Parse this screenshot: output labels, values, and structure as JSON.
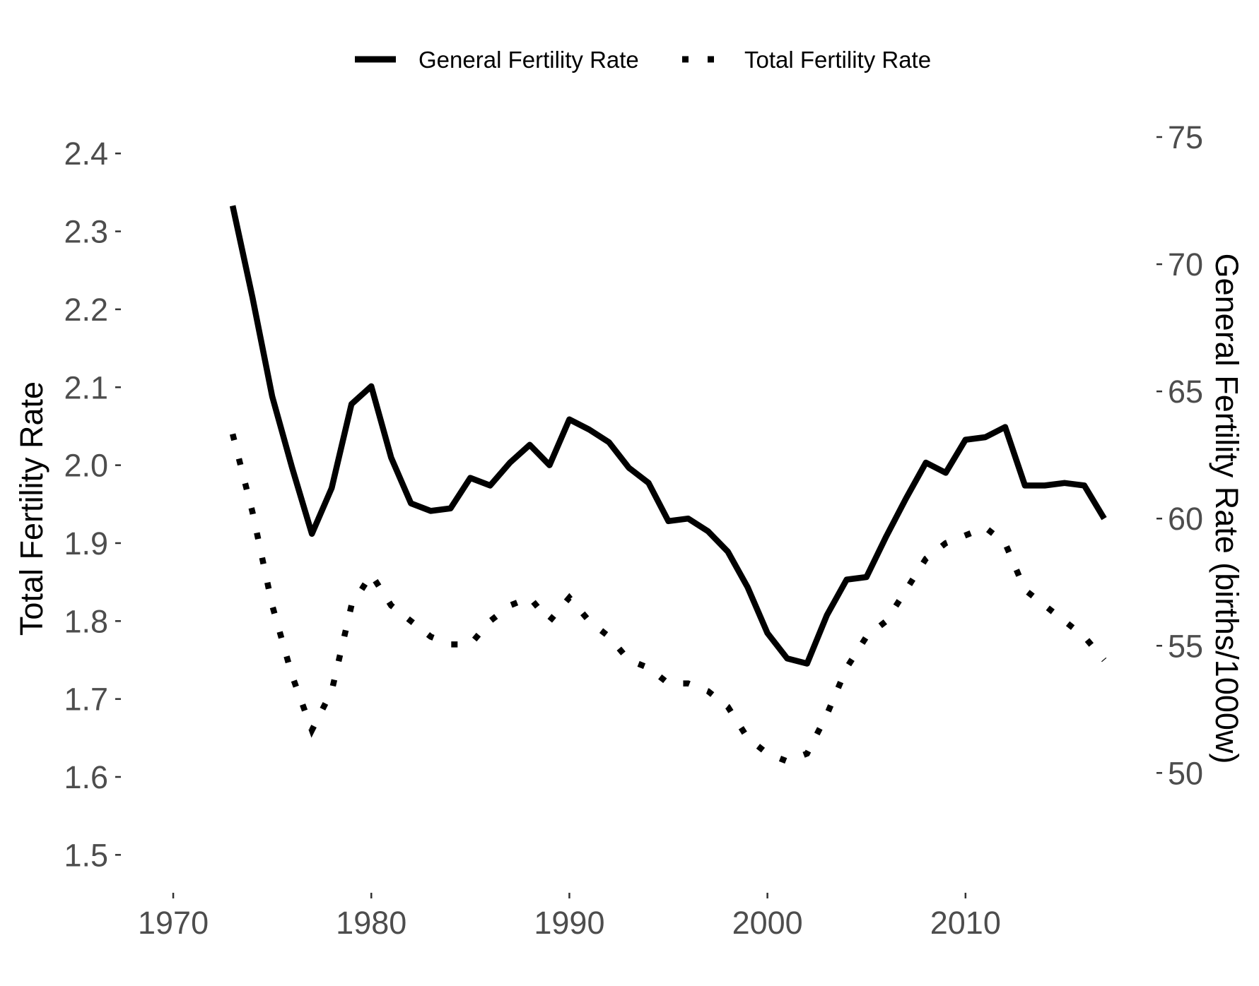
{
  "chart_data": {
    "type": "line",
    "legend": {
      "position": "top",
      "entries": [
        "General Fertility Rate",
        "Total Fertility Rate"
      ]
    },
    "x_ticks": [
      1970,
      1980,
      1990,
      2000,
      2010
    ],
    "x_range": [
      1967.5,
      2019.5
    ],
    "y_left": {
      "label": "Total Fertility Rate",
      "range": [
        1.455,
        2.47
      ],
      "ticks": [
        "1.5",
        "1.6",
        "1.7",
        "1.8",
        "1.9",
        "2.0",
        "2.1",
        "2.2",
        "2.3",
        "2.4"
      ]
    },
    "y_right": {
      "label": "General Fertility Rate (births/1000w)",
      "range": [
        45.4,
        76.5
      ],
      "ticks": [
        "50",
        "55",
        "60",
        "65",
        "70",
        "75"
      ]
    },
    "grid": false,
    "x": [
      1973,
      1974,
      1975,
      1976,
      1977,
      1978,
      1979,
      1980,
      1981,
      1982,
      1983,
      1984,
      1985,
      1986,
      1987,
      1988,
      1989,
      1990,
      1991,
      1992,
      1993,
      1994,
      1995,
      1996,
      1997,
      1998,
      1999,
      2000,
      2001,
      2002,
      2003,
      2004,
      2005,
      2006,
      2007,
      2008,
      2009,
      2010,
      2011,
      2012,
      2013,
      2014,
      2015,
      2016,
      2017
    ],
    "series": [
      {
        "name": "General Fertility Rate",
        "axis": "right",
        "style": "solid",
        "color": "#000000",
        "values": [
          72.3,
          68.7,
          64.8,
          62.0,
          59.4,
          61.2,
          64.5,
          65.2,
          62.4,
          60.6,
          60.3,
          60.4,
          61.6,
          61.3,
          62.2,
          62.9,
          62.1,
          63.9,
          63.5,
          63.0,
          62.0,
          61.4,
          59.9,
          60.0,
          59.5,
          58.7,
          57.3,
          55.5,
          54.5,
          54.3,
          56.2,
          57.6,
          57.7,
          59.3,
          60.8,
          62.2,
          61.8,
          63.1,
          63.2,
          63.6,
          61.3,
          61.3,
          61.4,
          61.3,
          60.0
        ]
      },
      {
        "name": "Total Fertility Rate",
        "axis": "left",
        "style": "dotted",
        "color": "#000000",
        "values": [
          2.04,
          1.94,
          1.82,
          1.73,
          1.66,
          1.71,
          1.82,
          1.86,
          1.82,
          1.8,
          1.78,
          1.77,
          1.77,
          1.8,
          1.82,
          1.83,
          1.8,
          1.83,
          1.8,
          1.78,
          1.75,
          1.74,
          1.72,
          1.72,
          1.71,
          1.69,
          1.65,
          1.63,
          1.62,
          1.63,
          1.68,
          1.74,
          1.78,
          1.8,
          1.84,
          1.88,
          1.9,
          1.91,
          1.92,
          1.9,
          1.84,
          1.82,
          1.8,
          1.78,
          1.75
        ]
      }
    ]
  }
}
